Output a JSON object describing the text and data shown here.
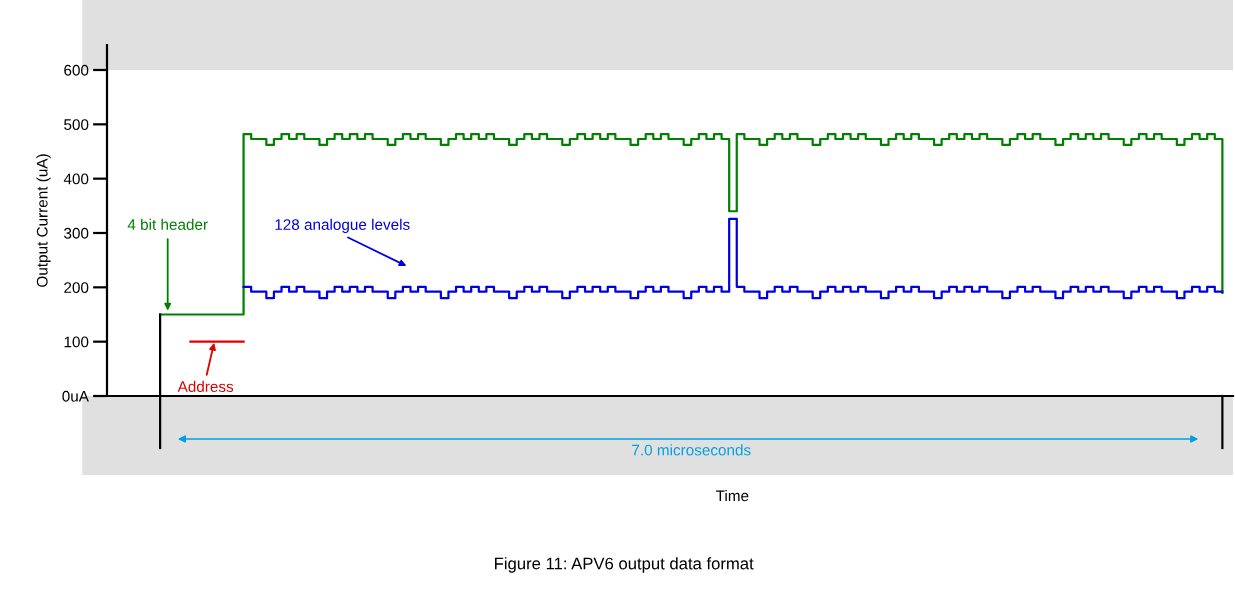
{
  "chart_data": {
    "type": "step",
    "title": "Figure 11: APV6 output data format",
    "ylabel": "Output Current (uA)",
    "ylim": [
      0,
      646
    ],
    "tick_labels": "y",
    "grid": false,
    "legend": false,
    "yticks": [
      {
        "value": 0,
        "label": "0uA"
      },
      100,
      200,
      300,
      400,
      500,
      600
    ],
    "categories": [
      null,
      null,
      null,
      null,
      null,
      null,
      null,
      null,
      null,
      null,
      null,
      null,
      null,
      null,
      null,
      null,
      null,
      null,
      null,
      null,
      null,
      null,
      null,
      null,
      null,
      null,
      null,
      null,
      null,
      null,
      null,
      null,
      null,
      null,
      null,
      null,
      null,
      null,
      null,
      null,
      null,
      null,
      null,
      null,
      null,
      null,
      null,
      null,
      null,
      null,
      null,
      null,
      null,
      null,
      null,
      null,
      null,
      null,
      null,
      null,
      null,
      null,
      null,
      null,
      null,
      null,
      null,
      null,
      null,
      null,
      null,
      null,
      null,
      null,
      null,
      null,
      null,
      null,
      null,
      null,
      null,
      null,
      null,
      null,
      null,
      null,
      null,
      null,
      null,
      null,
      null,
      null,
      null,
      null,
      null,
      null,
      null,
      null,
      null,
      null,
      null,
      null,
      null,
      null,
      null,
      null,
      null,
      null,
      null,
      null,
      null,
      null,
      null,
      null,
      null,
      null,
      null,
      null,
      null,
      null,
      null,
      null,
      null,
      null,
      null,
      null,
      null,
      null,
      null,
      null,
      null,
      null,
      null,
      null,
      null,
      null,
      null,
      null,
      null,
      null,
      null
    ],
    "series": [
      {
        "color": "#008000",
        "values": [
          150,
          150,
          150,
          150,
          150,
          150,
          150,
          150,
          150,
          150,
          150,
          482,
          473,
          473,
          462,
          473,
          482,
          473,
          482,
          473,
          473,
          462,
          473,
          482,
          473,
          482,
          473,
          482,
          473,
          473,
          462,
          473,
          482,
          473,
          482,
          473,
          473,
          462,
          473,
          482,
          473,
          482,
          473,
          482,
          473,
          473,
          462,
          473,
          482,
          473,
          482,
          473,
          473,
          462,
          473,
          482,
          473,
          482,
          473,
          482,
          473,
          473,
          462,
          473,
          482,
          473,
          482,
          473,
          473,
          462,
          473,
          482,
          473,
          482,
          473,
          340,
          482,
          473,
          473,
          462,
          473,
          482,
          473,
          482,
          473,
          473,
          462,
          473,
          482,
          473,
          482,
          473,
          482,
          473,
          473,
          462,
          473,
          482,
          473,
          482,
          473,
          473,
          462,
          473,
          482,
          473,
          482,
          473,
          482,
          473,
          473,
          462,
          473,
          482,
          473,
          482,
          473,
          473,
          462,
          473,
          482,
          473,
          482,
          473,
          482,
          473,
          473,
          462,
          473,
          482,
          473,
          482,
          473,
          473,
          462,
          473,
          482,
          473,
          482,
          473,
          190
        ]
      },
      {
        "type": "line",
        "color": "#e00000",
        "values": [
          null,
          null,
          null,
          null,
          100,
          100,
          100,
          100,
          100,
          100,
          100,
          100,
          null,
          null,
          null,
          null,
          null,
          null,
          null,
          null,
          null,
          null,
          null,
          null,
          null,
          null,
          null,
          null,
          null,
          null,
          null,
          null,
          null,
          null,
          null,
          null,
          null,
          null,
          null,
          null,
          null,
          null,
          null,
          null,
          null,
          null,
          null,
          null,
          null,
          null,
          null,
          null,
          null,
          null,
          null,
          null,
          null,
          null,
          null,
          null,
          null,
          null,
          null,
          null,
          null,
          null,
          null,
          null,
          null,
          null,
          null,
          null,
          null,
          null,
          null,
          null,
          null,
          null,
          null,
          null,
          null,
          null,
          null,
          null,
          null,
          null,
          null,
          null,
          null,
          null,
          null,
          null,
          null,
          null,
          null,
          null,
          null,
          null,
          null,
          null,
          null,
          null,
          null,
          null,
          null,
          null,
          null,
          null,
          null,
          null,
          null,
          null,
          null,
          null,
          null,
          null,
          null,
          null,
          null,
          null,
          null,
          null,
          null,
          null,
          null,
          null,
          null,
          null,
          null,
          null,
          null,
          null,
          null,
          null,
          null,
          null,
          null,
          null,
          null,
          null,
          null
        ]
      },
      {
        "color": "#0000e0",
        "values": [
          null,
          null,
          null,
          null,
          null,
          null,
          null,
          null,
          null,
          null,
          null,
          201,
          192,
          192,
          180,
          192,
          201,
          192,
          201,
          192,
          192,
          180,
          192,
          201,
          192,
          201,
          192,
          201,
          192,
          192,
          180,
          192,
          201,
          192,
          201,
          192,
          192,
          180,
          192,
          201,
          192,
          201,
          192,
          201,
          192,
          192,
          180,
          192,
          201,
          192,
          201,
          192,
          192,
          180,
          192,
          201,
          192,
          201,
          192,
          201,
          192,
          192,
          180,
          192,
          201,
          192,
          201,
          192,
          192,
          180,
          192,
          201,
          192,
          201,
          192,
          326,
          201,
          192,
          192,
          180,
          192,
          201,
          192,
          201,
          192,
          192,
          180,
          192,
          201,
          192,
          201,
          192,
          201,
          192,
          192,
          180,
          192,
          201,
          192,
          201,
          192,
          192,
          180,
          192,
          201,
          192,
          201,
          192,
          201,
          192,
          192,
          180,
          192,
          201,
          192,
          201,
          192,
          192,
          180,
          192,
          201,
          192,
          201,
          192,
          201,
          192,
          192,
          180,
          192,
          201,
          192,
          201,
          192,
          192,
          180,
          192,
          201,
          192,
          201,
          192,
          192
        ]
      }
    ],
    "annotations": [
      "4 bit header",
      "Address",
      "128 analogue levels",
      "7.0 microseconds",
      "Time"
    ]
  }
}
